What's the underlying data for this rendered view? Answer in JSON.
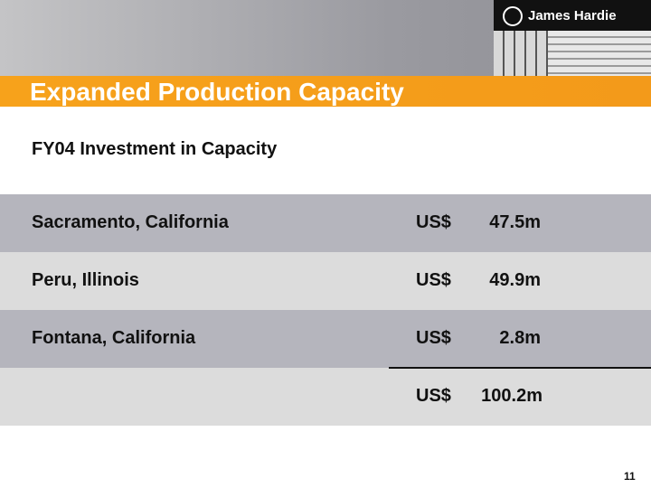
{
  "header": {
    "brand": "James Hardie",
    "title": "Expanded Production Capacity"
  },
  "subtitle": "FY04 Investment in Capacity",
  "table": {
    "rows": [
      [
        "Sacramento, California",
        "US$",
        "47.5m"
      ],
      [
        "Peru, Illinois",
        "US$",
        "49.9m"
      ],
      [
        "Fontana, California",
        "US$",
        "2.8m"
      ]
    ],
    "total": [
      "US$",
      "100.2m"
    ]
  },
  "page_number": "11"
}
